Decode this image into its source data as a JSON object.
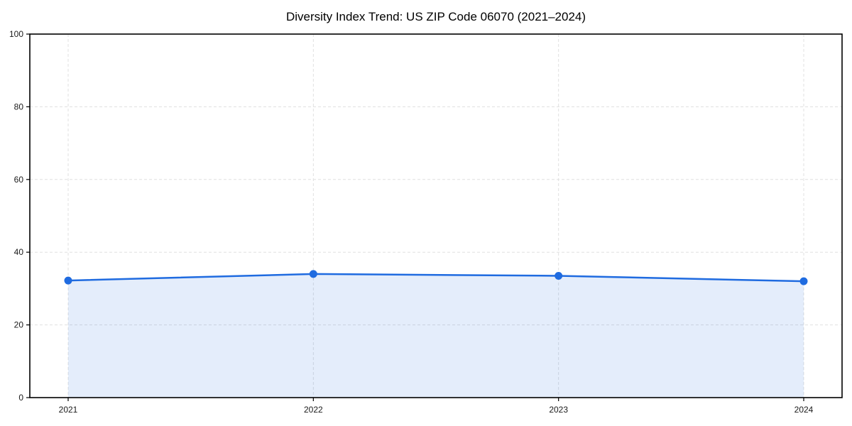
{
  "chart_data": {
    "type": "line",
    "title": "Diversity Index Trend: US ZIP Code 06070 (2021–2024)",
    "x": [
      2021,
      2022,
      2023,
      2024
    ],
    "xticks": [
      "2021",
      "2022",
      "2023",
      "2024"
    ],
    "series": [
      {
        "name": "Diversity Index",
        "values": [
          32.2,
          34.0,
          33.5,
          32.0
        ]
      }
    ],
    "xlabel": "",
    "ylabel": "",
    "ylim": [
      0,
      100
    ],
    "yticks": [
      0,
      20,
      40,
      60,
      80,
      100
    ],
    "grid": true,
    "grid_style": "dashed",
    "legend_position": "none",
    "area_under_line": true,
    "marker": "circle",
    "colors": {
      "line": "#1f6be0",
      "marker": "#1f6be0",
      "area_fill": "#1f6be0",
      "area_fill_opacity": 0.12,
      "grid": "#e0e0e0",
      "axis": "#000000",
      "text": "#1a1a1a"
    }
  }
}
